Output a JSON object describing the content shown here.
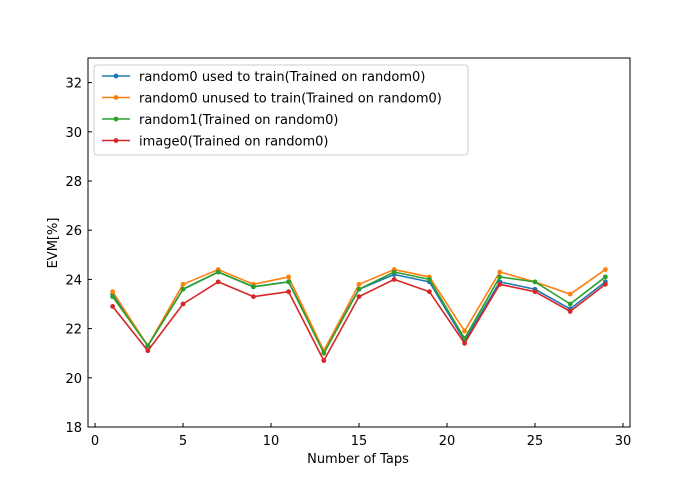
{
  "chart_data": {
    "type": "line",
    "xlabel": "Number of Taps",
    "ylabel": "EVM[%]",
    "xlim": [
      -0.4,
      30.4
    ],
    "ylim": [
      18,
      33
    ],
    "xticks": [
      0,
      5,
      10,
      15,
      20,
      25,
      30
    ],
    "yticks": [
      18,
      20,
      22,
      24,
      26,
      28,
      30,
      32
    ],
    "legend_position": "upper-left",
    "grid": false,
    "x": [
      1,
      3,
      5,
      7,
      9,
      11,
      13,
      15,
      17,
      19,
      21,
      23,
      25,
      27,
      29
    ],
    "series": [
      {
        "name": "random0 used to train(Trained on random0)",
        "color": "#1f77b4",
        "values": [
          23.4,
          21.3,
          23.6,
          24.3,
          23.7,
          23.9,
          21.1,
          23.6,
          24.2,
          23.9,
          21.5,
          23.9,
          23.6,
          22.8,
          23.9
        ]
      },
      {
        "name": "random0 unused to train(Trained on random0)",
        "color": "#ff7f0e",
        "values": [
          23.5,
          21.3,
          23.8,
          24.4,
          23.8,
          24.1,
          21.1,
          23.8,
          24.4,
          24.1,
          21.9,
          24.3,
          23.9,
          23.4,
          24.4
        ]
      },
      {
        "name": "random1(Trained on random0)",
        "color": "#2ca02c",
        "values": [
          23.3,
          21.3,
          23.6,
          24.3,
          23.7,
          23.9,
          21.0,
          23.6,
          24.3,
          24.0,
          21.6,
          24.1,
          23.9,
          23.0,
          24.1
        ]
      },
      {
        "name": "image0(Trained on random0)",
        "color": "#d62728",
        "values": [
          22.9,
          21.1,
          23.0,
          23.9,
          23.3,
          23.5,
          20.7,
          23.3,
          24.0,
          23.5,
          21.4,
          23.8,
          23.5,
          22.7,
          23.8
        ]
      }
    ]
  }
}
